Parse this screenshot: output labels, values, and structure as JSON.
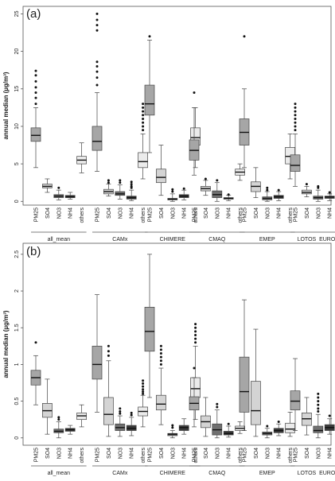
{
  "chart_data": [
    {
      "type": "boxplot",
      "panel_label": "(a)",
      "ylabel": "annual median (µg/m³)",
      "ylim": [
        -0.5,
        26
      ],
      "yticks": [
        0,
        5,
        10,
        15,
        20,
        25
      ],
      "categories": [
        "PM25",
        "SO4",
        "NO3",
        "NH4",
        "others"
      ],
      "groups": [
        {
          "name": "all_mean",
          "label": "all_mean",
          "boxes": [
            {
              "category": "PM25",
              "min": 4.5,
              "q1": 8.0,
              "median": 8.8,
              "q3": 9.8,
              "max": 12.5,
              "outliers": [
                13,
                13.8,
                14.5,
                15.2,
                16,
                16.8,
                17.4
              ]
            },
            {
              "category": "SO4",
              "min": 1.2,
              "q1": 1.8,
              "median": 2.0,
              "q3": 2.3,
              "max": 3.0,
              "outliers": []
            },
            {
              "category": "NO3",
              "min": 0.2,
              "q1": 0.5,
              "median": 0.7,
              "q3": 0.9,
              "max": 1.5,
              "outliers": [
                1.8
              ]
            },
            {
              "category": "NH4",
              "min": 0.3,
              "q1": 0.5,
              "median": 0.6,
              "q3": 0.8,
              "max": 1.2,
              "outliers": []
            },
            {
              "category": "others",
              "min": 3.8,
              "q1": 5.0,
              "median": 5.5,
              "q3": 6.0,
              "max": 7.8,
              "outliers": []
            }
          ]
        },
        {
          "name": "CAMx",
          "label": "CAMx",
          "boxes": [
            {
              "category": "PM25",
              "min": 4.0,
              "q1": 6.8,
              "median": 8.0,
              "q3": 10.0,
              "max": 14.5,
              "outliers": [
                15.5,
                16.5,
                17.3,
                18,
                18.6,
                22.8,
                23.5,
                24.2,
                25
              ]
            },
            {
              "category": "SO4",
              "min": 0.7,
              "q1": 1.0,
              "median": 1.3,
              "q3": 1.6,
              "max": 2.3,
              "outliers": [
                2.5,
                2.8
              ]
            },
            {
              "category": "NO3",
              "min": 0.3,
              "q1": 0.8,
              "median": 1.0,
              "q3": 1.3,
              "max": 2.2,
              "outliers": [
                2.5,
                2.8
              ]
            },
            {
              "category": "NH4",
              "min": 0.1,
              "q1": 0.3,
              "median": 0.5,
              "q3": 0.7,
              "max": 1.5,
              "outliers": [
                1.8,
                2.0,
                2.3,
                2.6
              ]
            },
            {
              "category": "others",
              "min": 3.0,
              "q1": 4.5,
              "median": 5.3,
              "q3": 6.5,
              "max": 9.0,
              "outliers": [
                9.5,
                10,
                10.5,
                11,
                11.5,
                12,
                12.5,
                13
              ]
            }
          ]
        },
        {
          "name": "CHIMERE",
          "label": "CHIMERE",
          "boxes": [
            {
              "category": "PM25",
              "min": 6.5,
              "q1": 11.5,
              "median": 13.0,
              "q3": 15.5,
              "max": 21.5,
              "outliers": [
                22
              ]
            },
            {
              "category": "SO4",
              "min": 0.8,
              "q1": 2.5,
              "median": 3.2,
              "q3": 4.3,
              "max": 7.5,
              "outliers": []
            },
            {
              "category": "NO3",
              "min": 0.0,
              "q1": 0.2,
              "median": 0.3,
              "q3": 0.4,
              "max": 1.0,
              "outliers": [
                1.3,
                1.6
              ]
            },
            {
              "category": "NH4",
              "min": 0.2,
              "q1": 0.5,
              "median": 0.7,
              "q3": 0.9,
              "max": 1.5,
              "outliers": [
                1.7
              ]
            },
            {
              "category": "others",
              "min": 4.5,
              "q1": 7.5,
              "median": 8.5,
              "q3": 9.8,
              "max": 12.5,
              "outliers": []
            }
          ]
        },
        {
          "name": "CMAQ",
          "label": "CMAQ",
          "boxes": [
            {
              "category": "PM25",
              "min": 3.5,
              "q1": 5.5,
              "median": 6.8,
              "q3": 8.2,
              "max": 12.5,
              "outliers": [
                14.5
              ]
            },
            {
              "category": "SO4",
              "min": 0.8,
              "q1": 1.4,
              "median": 1.7,
              "q3": 2.0,
              "max": 2.8,
              "outliers": [
                3.0
              ]
            },
            {
              "category": "NO3",
              "min": 0.0,
              "q1": 0.5,
              "median": 0.9,
              "q3": 1.4,
              "max": 2.5,
              "outliers": [
                2.8
              ]
            },
            {
              "category": "NH4",
              "min": 0.1,
              "q1": 0.3,
              "median": 0.4,
              "q3": 0.5,
              "max": 0.8,
              "outliers": [
                0.9
              ]
            },
            {
              "category": "others",
              "min": 2.8,
              "q1": 3.5,
              "median": 3.9,
              "q3": 4.3,
              "max": 5.0,
              "outliers": []
            }
          ]
        },
        {
          "name": "EMEP",
          "label": "EMEP",
          "boxes": [
            {
              "category": "PM25",
              "min": 4.5,
              "q1": 7.5,
              "median": 9.2,
              "q3": 11.0,
              "max": 15.0,
              "outliers": [
                22
              ]
            },
            {
              "category": "SO4",
              "min": 0.5,
              "q1": 1.3,
              "median": 2.0,
              "q3": 2.6,
              "max": 4.5,
              "outliers": []
            },
            {
              "category": "NO3",
              "min": 0.0,
              "q1": 0.2,
              "median": 0.4,
              "q3": 0.6,
              "max": 1.3,
              "outliers": [
                1.5,
                1.8
              ]
            },
            {
              "category": "NH4",
              "min": 0.1,
              "q1": 0.4,
              "median": 0.6,
              "q3": 0.8,
              "max": 1.3,
              "outliers": [
                1.5
              ]
            },
            {
              "category": "others",
              "min": 3.0,
              "q1": 5.0,
              "median": 6.0,
              "q3": 7.2,
              "max": 9.0,
              "outliers": []
            }
          ]
        },
        {
          "name": "LOTOS EUROS",
          "label": "LOTOS  EUROS",
          "boxes": [
            {
              "category": "PM25",
              "min": 2.0,
              "q1": 4.0,
              "median": 4.8,
              "q3": 6.2,
              "max": 9.0,
              "outliers": [
                9.5,
                10,
                10.5,
                11,
                11.5,
                12,
                12.5,
                13
              ]
            },
            {
              "category": "SO4",
              "min": 0.6,
              "q1": 1.0,
              "median": 1.2,
              "q3": 1.5,
              "max": 2.0,
              "outliers": [
                2.3
              ]
            },
            {
              "category": "NO3",
              "min": 0.0,
              "q1": 0.3,
              "median": 0.5,
              "q3": 0.7,
              "max": 1.5,
              "outliers": [
                1.8,
                2.0
              ]
            },
            {
              "category": "NH4",
              "min": 0.1,
              "q1": 0.4,
              "median": 0.6,
              "q3": 0.7,
              "max": 1.0,
              "outliers": [
                1.2
              ]
            },
            {
              "category": "others",
              "min": 0.8,
              "q1": 1.8,
              "median": 2.2,
              "q3": 2.8,
              "max": 4.0,
              "outliers": [
                4.5,
                5,
                5.5,
                6,
                6.5,
                7,
                7.5,
                8,
                8.5,
                9,
                9.8,
                10.5,
                11.2,
                12,
                12.8,
                13.5
              ]
            }
          ]
        }
      ]
    },
    {
      "type": "boxplot",
      "panel_label": "(b)",
      "ylabel": "annual median (µg/m³)",
      "ylim": [
        -0.1,
        2.65
      ],
      "yticks": [
        0.0,
        0.5,
        1.0,
        1.5,
        2.0,
        2.5
      ],
      "categories": [
        "PM25",
        "SO4",
        "NO3",
        "NH4",
        "others"
      ],
      "groups": [
        {
          "name": "all_mean",
          "label": "all_mean",
          "boxes": [
            {
              "category": "PM25",
              "min": 0.45,
              "q1": 0.72,
              "median": 0.82,
              "q3": 0.92,
              "max": 1.12,
              "outliers": [
                1.3
              ]
            },
            {
              "category": "SO4",
              "min": 0.05,
              "q1": 0.28,
              "median": 0.37,
              "q3": 0.47,
              "max": 0.8,
              "outliers": []
            },
            {
              "category": "NO3",
              "min": 0.0,
              "q1": 0.07,
              "median": 0.09,
              "q3": 0.12,
              "max": 0.22,
              "outliers": [
                0.25,
                0.28
              ]
            },
            {
              "category": "NH4",
              "min": 0.05,
              "q1": 0.09,
              "median": 0.11,
              "q3": 0.13,
              "max": 0.17,
              "outliers": []
            },
            {
              "category": "others",
              "min": 0.15,
              "q1": 0.25,
              "median": 0.3,
              "q3": 0.34,
              "max": 0.45,
              "outliers": []
            }
          ]
        },
        {
          "name": "CAMx",
          "label": "CAMx",
          "boxes": [
            {
              "category": "PM25",
              "min": 0.35,
              "q1": 0.8,
              "median": 1.0,
              "q3": 1.25,
              "max": 1.95,
              "outliers": []
            },
            {
              "category": "SO4",
              "min": 0.02,
              "q1": 0.18,
              "median": 0.32,
              "q3": 0.55,
              "max": 1.05,
              "outliers": [
                1.12,
                1.18,
                1.25
              ]
            },
            {
              "category": "NO3",
              "min": 0.02,
              "q1": 0.1,
              "median": 0.14,
              "q3": 0.19,
              "max": 0.3,
              "outliers": [
                0.33,
                0.36,
                0.4
              ]
            },
            {
              "category": "NH4",
              "min": 0.03,
              "q1": 0.1,
              "median": 0.13,
              "q3": 0.17,
              "max": 0.28,
              "outliers": [
                0.31,
                0.34
              ]
            },
            {
              "category": "others",
              "min": 0.15,
              "q1": 0.3,
              "median": 0.36,
              "q3": 0.42,
              "max": 0.58,
              "outliers": [
                0.6,
                0.63,
                0.66,
                0.7,
                0.74,
                0.78
              ]
            }
          ]
        },
        {
          "name": "CHIMERE",
          "label": "CHIMERE",
          "boxes": [
            {
              "category": "PM25",
              "min": 0.55,
              "q1": 1.18,
              "median": 1.45,
              "q3": 1.78,
              "max": 2.5,
              "outliers": []
            },
            {
              "category": "SO4",
              "min": 0.18,
              "q1": 0.38,
              "median": 0.46,
              "q3": 0.58,
              "max": 0.95,
              "outliers": [
                1.0,
                1.05,
                1.1,
                1.15,
                1.2,
                1.25
              ]
            },
            {
              "category": "NO3",
              "min": 0.0,
              "q1": 0.03,
              "median": 0.05,
              "q3": 0.06,
              "max": 0.1,
              "outliers": [
                0.14,
                0.17
              ]
            },
            {
              "category": "NH4",
              "min": 0.05,
              "q1": 0.1,
              "median": 0.14,
              "q3": 0.17,
              "max": 0.26,
              "outliers": []
            },
            {
              "category": "others",
              "min": 0.25,
              "q1": 0.55,
              "median": 0.67,
              "q3": 0.82,
              "max": 1.25,
              "outliers": [
                1.3,
                1.35,
                1.4,
                1.45,
                1.5,
                1.55
              ]
            }
          ]
        },
        {
          "name": "CMAQ",
          "label": "CMAQ",
          "boxes": [
            {
              "category": "PM25",
              "min": 0.15,
              "q1": 0.38,
              "median": 0.47,
              "q3": 0.56,
              "max": 0.82,
              "outliers": [
                0.95
              ]
            },
            {
              "category": "SO4",
              "min": 0.02,
              "q1": 0.14,
              "median": 0.22,
              "q3": 0.3,
              "max": 0.55,
              "outliers": []
            },
            {
              "category": "NO3",
              "min": 0.0,
              "q1": 0.04,
              "median": 0.11,
              "q3": 0.19,
              "max": 0.38,
              "outliers": [
                0.42,
                0.46
              ]
            },
            {
              "category": "NH4",
              "min": 0.01,
              "q1": 0.04,
              "median": 0.06,
              "q3": 0.09,
              "max": 0.16,
              "outliers": [
                0.19
              ]
            },
            {
              "category": "others",
              "min": 0.06,
              "q1": 0.1,
              "median": 0.13,
              "q3": 0.16,
              "max": 0.22,
              "outliers": []
            }
          ]
        },
        {
          "name": "EMEP",
          "label": "EMEP",
          "boxes": [
            {
              "category": "PM25",
              "min": 0.1,
              "q1": 0.35,
              "median": 0.63,
              "q3": 1.1,
              "max": 1.88,
              "outliers": []
            },
            {
              "category": "SO4",
              "min": 0.02,
              "q1": 0.18,
              "median": 0.37,
              "q3": 0.77,
              "max": 1.48,
              "outliers": []
            },
            {
              "category": "NO3",
              "min": 0.0,
              "q1": 0.04,
              "median": 0.06,
              "q3": 0.08,
              "max": 0.13,
              "outliers": [
                0.16
              ]
            },
            {
              "category": "NH4",
              "min": 0.03,
              "q1": 0.07,
              "median": 0.1,
              "q3": 0.13,
              "max": 0.19,
              "outliers": [
                0.22
              ]
            },
            {
              "category": "others",
              "min": 0.02,
              "q1": 0.07,
              "median": 0.12,
              "q3": 0.2,
              "max": 0.35,
              "outliers": []
            }
          ]
        },
        {
          "name": "LOTOS EUROS",
          "label": "LOTOS  EUROS",
          "boxes": [
            {
              "category": "PM25",
              "min": 0.1,
              "q1": 0.38,
              "median": 0.5,
              "q3": 0.64,
              "max": 1.08,
              "outliers": []
            },
            {
              "category": "SO4",
              "min": 0.04,
              "q1": 0.17,
              "median": 0.26,
              "q3": 0.34,
              "max": 0.55,
              "outliers": []
            },
            {
              "category": "NO3",
              "min": 0.0,
              "q1": 0.07,
              "median": 0.1,
              "q3": 0.16,
              "max": 0.32,
              "outliers": [
                0.36,
                0.4,
                0.45,
                0.5,
                0.55,
                0.6
              ]
            },
            {
              "category": "NH4",
              "min": 0.05,
              "q1": 0.1,
              "median": 0.14,
              "q3": 0.18,
              "max": 0.26,
              "outliers": [
                0.3
              ]
            },
            {
              "category": "others",
              "min": 0.01,
              "q1": 0.03,
              "median": 0.04,
              "q3": 0.05,
              "max": 0.06,
              "outliers": []
            }
          ]
        }
      ]
    }
  ],
  "colors": {
    "PM25": "#a6a6a6",
    "SO4": "#d4d4d4",
    "NO3": "#707070",
    "NH4": "#3a3a3a",
    "others": "#ebebeb",
    "axis": "#555555",
    "text": "#222222"
  }
}
